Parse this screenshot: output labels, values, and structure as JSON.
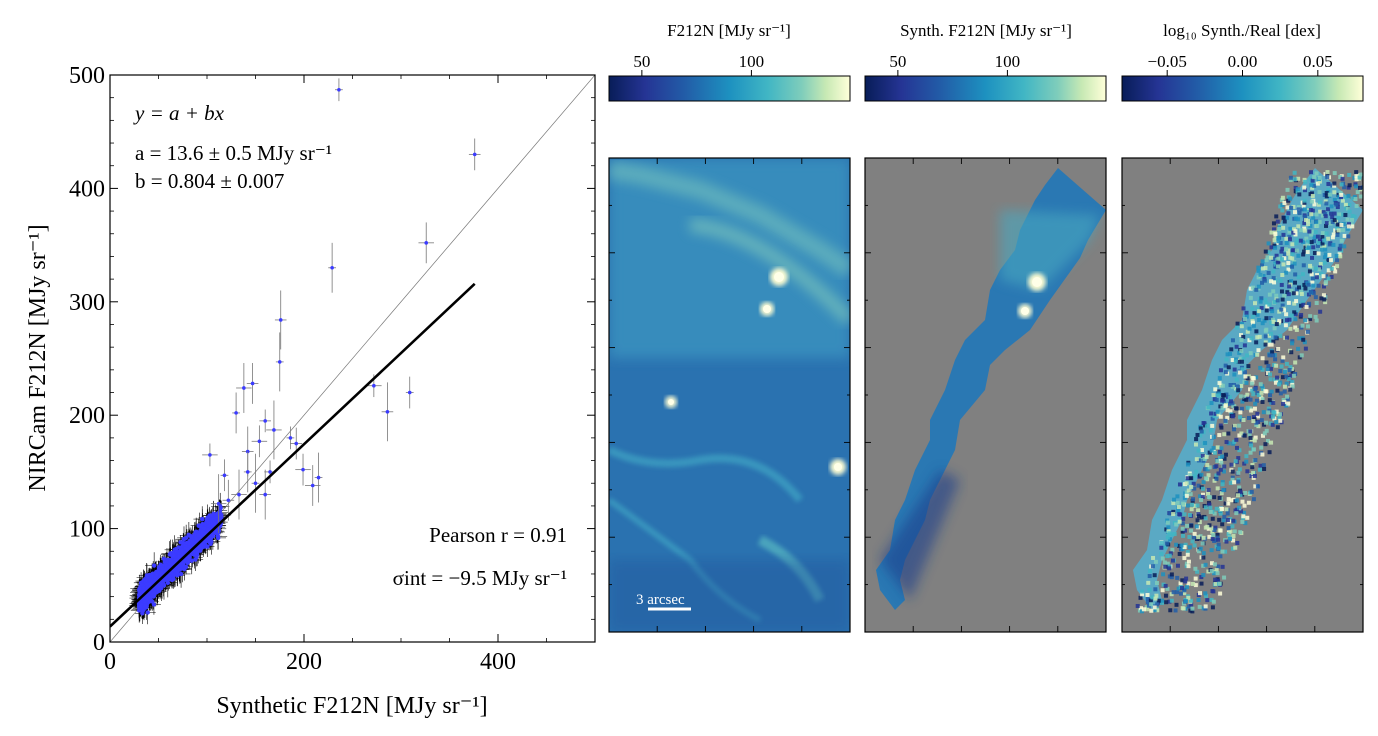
{
  "chart_data": [
    {
      "type": "scatter",
      "xlabel": "Synthetic F212N [MJy sr⁻¹]",
      "ylabel": "NIRCam F212N [MJy sr⁻¹]",
      "xlim": [
        0,
        500
      ],
      "ylim": [
        0,
        500
      ],
      "xticks": [
        "0",
        "200",
        "400"
      ],
      "yticks": [
        "0",
        "100",
        "200",
        "300",
        "400",
        "500"
      ],
      "grid": false,
      "annotations": {
        "model": "y = a + bx",
        "a_fit": "a = 13.6 ± 0.5 MJy sr⁻¹",
        "b_fit": "b = 0.804 ± 0.007",
        "pearson": "Pearson r = 0.91",
        "sigma": "σint = −9.5 MJy sr⁻¹"
      },
      "fit": {
        "intercept": 13.6,
        "slope": 0.804,
        "x_range": [
          0,
          376
        ]
      },
      "one_to_one": true,
      "series": [
        {
          "values_outliers": [
            [
              236,
              487
            ],
            [
              376,
              430
            ],
            [
              326,
              352
            ],
            [
              229,
              330
            ],
            [
              176,
              284
            ],
            [
              272,
              226
            ],
            [
              309,
              220
            ],
            [
              147,
              228
            ],
            [
              138,
              224
            ],
            [
              175,
              247
            ],
            [
              160,
              195
            ],
            [
              154,
              177
            ],
            [
              130,
              202
            ],
            [
              142,
              168
            ],
            [
              169,
              187
            ],
            [
              186,
              180
            ],
            [
              192,
              175
            ],
            [
              209,
              138
            ],
            [
              215,
              145
            ],
            [
              286,
              203
            ],
            [
              103,
              165
            ],
            [
              118,
              147
            ],
            [
              122,
              125
            ],
            [
              133,
              130
            ],
            [
              150,
              140
            ],
            [
              165,
              150
            ],
            [
              199,
              152
            ],
            [
              142,
              150
            ],
            [
              160,
              130
            ],
            [
              112,
              122
            ]
          ],
          "bulk": {
            "x_range": [
              30,
              115
            ],
            "y_center_slope": 0.804,
            "y_center_intercept": 13.6,
            "spread": 12
          }
        }
      ],
      "colors": {
        "points": "#3b3bff",
        "errorbars": "#000000",
        "fit": "#000000",
        "one_to_one": "#777777"
      }
    },
    {
      "type": "heatmap",
      "colorbar_label": "F212N [MJy sr⁻¹]",
      "colorbar_ticks": [
        "50",
        "100"
      ],
      "colorbar_range": [
        35,
        145
      ],
      "scale_bar": "3 arcsec",
      "colormap": "YlGnBu_r"
    },
    {
      "type": "heatmap",
      "colorbar_label": "Synth. F212N [MJy sr⁻¹]",
      "colorbar_ticks": [
        "50",
        "100"
      ],
      "colorbar_range": [
        35,
        145
      ],
      "colormap": "YlGnBu_r",
      "background": "#808080"
    },
    {
      "type": "heatmap",
      "colorbar_label": "log₁₀ Synth./Real [dex]",
      "colorbar_ticks": [
        "−0.05",
        "0.00",
        "0.05"
      ],
      "colorbar_range": [
        -0.08,
        0.08
      ],
      "colormap": "YlGnBu_r",
      "background": "#808080"
    }
  ]
}
